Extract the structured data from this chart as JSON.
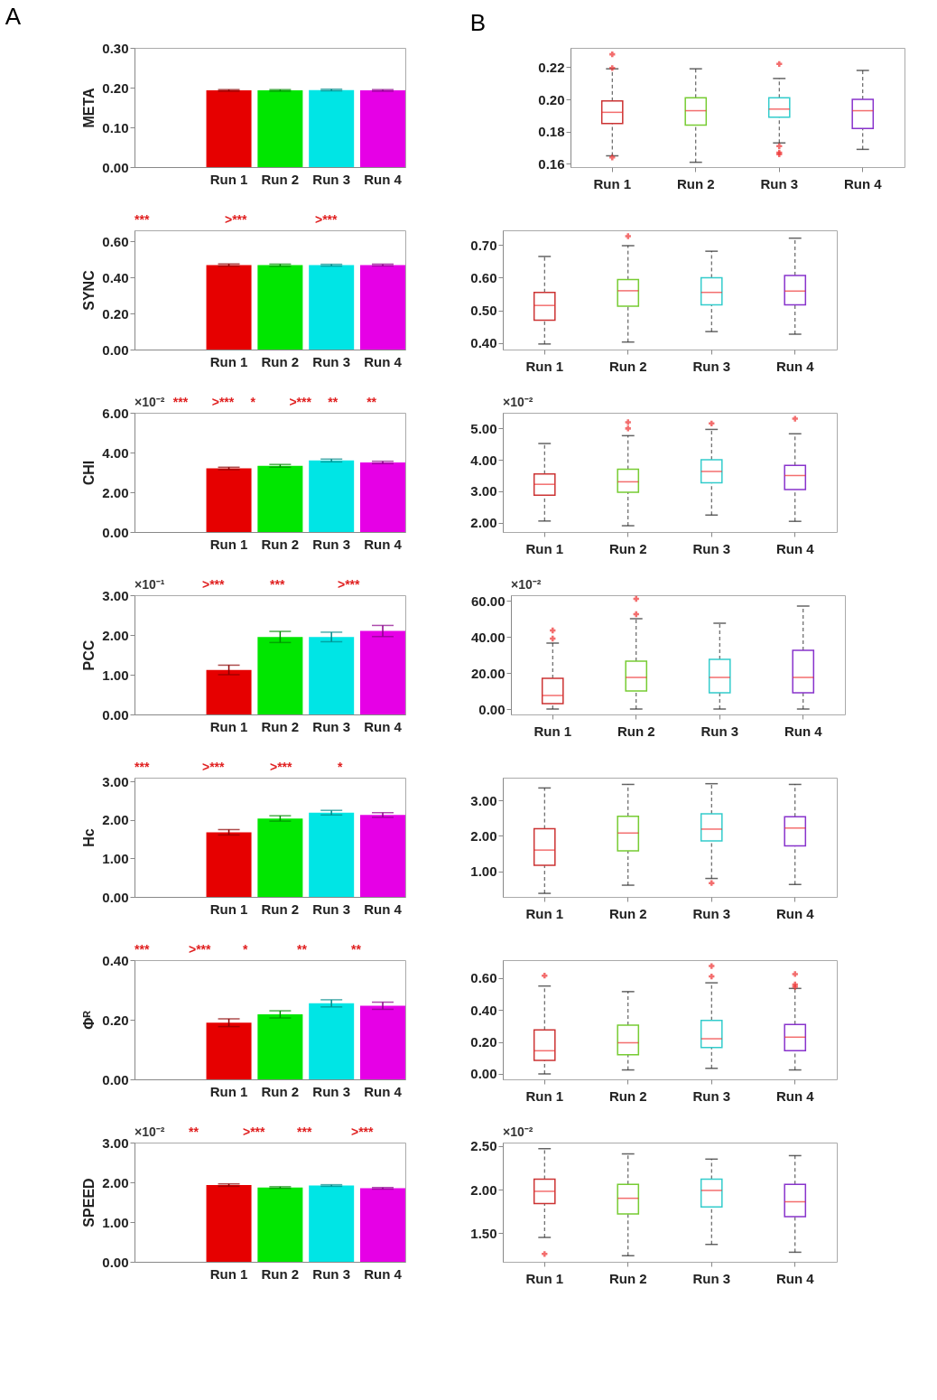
{
  "chart_data": [
    {
      "type": "bar",
      "title": "A",
      "ylabel": "META",
      "categories": [
        "Run 1",
        "Run 2",
        "Run 3",
        "Run 4"
      ],
      "values": [
        0.193,
        0.193,
        0.194,
        0.193
      ],
      "errors": [
        0.002,
        0.002,
        0.002,
        0.002
      ],
      "colors": [
        "#e60000",
        "#00e600",
        "#00e5e5",
        "#e600e6"
      ],
      "ylim": [
        0,
        0.3
      ],
      "yticks": [
        {
          "value": 0,
          "label": "0.00"
        },
        {
          "value": 0.1,
          "label": "0.10"
        },
        {
          "value": 0.2,
          "label": "0.20"
        },
        {
          "value": 0.3,
          "label": "0.30"
        }
      ]
    },
    {
      "type": "box",
      "title": "B",
      "categories": [
        "Run 1",
        "Run 2",
        "Run 3",
        "Run 4"
      ],
      "colors": [
        "#cc3333",
        "#77cc33",
        "#33cccc",
        "#8833cc"
      ],
      "marker": "cross",
      "line_style": "dashed",
      "ylim": [
        0.158,
        0.232
      ],
      "yticks": [
        {
          "value": 0.16,
          "label": "0.16"
        },
        {
          "value": 0.18,
          "label": "0.18"
        },
        {
          "value": 0.2,
          "label": "0.20"
        },
        {
          "value": 0.22,
          "label": "0.22"
        }
      ],
      "boxes": [
        {
          "low": 0.165,
          "q1": 0.185,
          "median": 0.192,
          "q3": 0.199,
          "high": 0.219,
          "outliers": [
            0.228,
            0.2195,
            0.164
          ]
        },
        {
          "low": 0.161,
          "q1": 0.184,
          "median": 0.193,
          "q3": 0.201,
          "high": 0.219
        },
        {
          "low": 0.173,
          "q1": 0.189,
          "median": 0.194,
          "q3": 0.201,
          "high": 0.213,
          "outliers": [
            0.222,
            0.171,
            0.167,
            0.166
          ]
        },
        {
          "low": 0.169,
          "q1": 0.182,
          "median": 0.193,
          "q3": 0.2,
          "high": 0.218
        }
      ]
    },
    {
      "type": "bar",
      "ylabel": "SYNC",
      "categories": [
        "Run 1",
        "Run 2",
        "Run 3",
        "Run 4"
      ],
      "values": [
        0.468,
        0.467,
        0.467,
        0.468
      ],
      "errors": [
        0.006,
        0.006,
        0.005,
        0.005
      ],
      "colors": [
        "#e60000",
        "#00e600",
        "#00e5e5",
        "#e600e6"
      ],
      "ylim": [
        0,
        0.66
      ],
      "yticks": [
        {
          "value": 0,
          "label": "0.00"
        },
        {
          "value": 0.2,
          "label": "0.20"
        },
        {
          "value": 0.4,
          "label": "0.40"
        },
        {
          "value": 0.6,
          "label": "0.60"
        }
      ],
      "annotations": [
        "***",
        ">***",
        ">***"
      ]
    },
    {
      "type": "box",
      "categories": [
        "Run 1",
        "Run 2",
        "Run 3",
        "Run 4"
      ],
      "colors": [
        "#cc3333",
        "#77cc33",
        "#33cccc",
        "#8833cc"
      ],
      "marker": "cross",
      "line_style": "dashed",
      "ylim": [
        0.38,
        0.745
      ],
      "yticks": [
        {
          "value": 0.4,
          "label": "0.40"
        },
        {
          "value": 0.5,
          "label": "0.50"
        },
        {
          "value": 0.6,
          "label": "0.60"
        },
        {
          "value": 0.7,
          "label": "0.70"
        }
      ],
      "boxes": [
        {
          "low": 0.397,
          "q1": 0.47,
          "median": 0.515,
          "q3": 0.555,
          "high": 0.665
        },
        {
          "low": 0.403,
          "q1": 0.513,
          "median": 0.56,
          "q3": 0.594,
          "high": 0.698,
          "outliers": [
            0.727
          ]
        },
        {
          "low": 0.435,
          "q1": 0.517,
          "median": 0.555,
          "q3": 0.6,
          "high": 0.681
        },
        {
          "low": 0.427,
          "q1": 0.517,
          "median": 0.559,
          "q3": 0.607,
          "high": 0.721
        }
      ]
    },
    {
      "type": "bar",
      "ylabel": "CHI",
      "categories": [
        "Run 1",
        "Run 2",
        "Run 3",
        "Run 4"
      ],
      "values": [
        3.2,
        3.33,
        3.6,
        3.5
      ],
      "errors": [
        0.06,
        0.07,
        0.07,
        0.06
      ],
      "colors": [
        "#e60000",
        "#00e600",
        "#00e5e5",
        "#e600e6"
      ],
      "ylim": [
        0,
        6
      ],
      "yticks": [
        {
          "value": 0,
          "label": "0.00"
        },
        {
          "value": 2,
          "label": "2.00"
        },
        {
          "value": 4,
          "label": "4.00"
        },
        {
          "value": 6,
          "label": "6.00"
        }
      ],
      "annotations": [
        "×10⁻²",
        "***",
        ">***",
        "*",
        ">***",
        "**",
        "**"
      ]
    },
    {
      "type": "box",
      "categories": [
        "Run 1",
        "Run 2",
        "Run 3",
        "Run 4"
      ],
      "colors": [
        "#cc3333",
        "#77cc33",
        "#33cccc",
        "#8833cc"
      ],
      "marker": "cross",
      "line_style": "dashed",
      "ylim": [
        1.7,
        5.5
      ],
      "yticks": [
        {
          "value": 2,
          "label": "2.00"
        },
        {
          "value": 3,
          "label": "3.00"
        },
        {
          "value": 4,
          "label": "4.00"
        },
        {
          "value": 5,
          "label": "5.00"
        }
      ],
      "annotations": [
        "×10⁻²"
      ],
      "boxes": [
        {
          "low": 2.05,
          "q1": 2.87,
          "median": 3.22,
          "q3": 3.55,
          "high": 4.52
        },
        {
          "low": 1.9,
          "q1": 2.97,
          "median": 3.3,
          "q3": 3.7,
          "high": 4.77,
          "outliers": [
            5.0,
            5.2
          ]
        },
        {
          "low": 2.24,
          "q1": 3.27,
          "median": 3.63,
          "q3": 4.0,
          "high": 4.97,
          "outliers": [
            5.16
          ]
        },
        {
          "low": 2.04,
          "q1": 3.05,
          "median": 3.5,
          "q3": 3.82,
          "high": 4.83,
          "outliers": [
            5.31
          ]
        }
      ]
    },
    {
      "type": "bar",
      "ylabel": "PCC",
      "categories": [
        "Run 1",
        "Run 2",
        "Run 3",
        "Run 4"
      ],
      "values": [
        1.12,
        1.95,
        1.95,
        2.1
      ],
      "errors": [
        0.12,
        0.14,
        0.12,
        0.14
      ],
      "colors": [
        "#e60000",
        "#00e600",
        "#00e5e5",
        "#e600e6"
      ],
      "ylim": [
        0,
        3
      ],
      "yticks": [
        {
          "value": 0,
          "label": "0.00"
        },
        {
          "value": 1,
          "label": "1.00"
        },
        {
          "value": 2,
          "label": "2.00"
        },
        {
          "value": 3,
          "label": "3.00"
        }
      ],
      "annotations": [
        "×10⁻¹",
        ">***",
        "***",
        ">***"
      ]
    },
    {
      "type": "box",
      "categories": [
        "Run 1",
        "Run 2",
        "Run 3",
        "Run 4"
      ],
      "colors": [
        "#cc3333",
        "#77cc33",
        "#33cccc",
        "#8833cc"
      ],
      "marker": "cross",
      "line_style": "dashed",
      "ylim": [
        -3,
        63
      ],
      "yticks": [
        {
          "value": 0,
          "label": "0.00"
        },
        {
          "value": 20,
          "label": "20.00"
        },
        {
          "value": 40,
          "label": "40.00"
        },
        {
          "value": 60,
          "label": "60.00"
        }
      ],
      "annotations": [
        "×10⁻²"
      ],
      "boxes": [
        {
          "low": 0,
          "q1": 3,
          "median": 7.5,
          "q3": 17,
          "high": 36.5,
          "outliers": [
            39,
            43.5
          ]
        },
        {
          "low": 0,
          "q1": 10,
          "median": 17.5,
          "q3": 26.5,
          "high": 50,
          "outliers": [
            52.5,
            61
          ]
        },
        {
          "low": 0,
          "q1": 9,
          "median": 17.5,
          "q3": 27.5,
          "high": 47.5
        },
        {
          "low": 0,
          "q1": 9,
          "median": 17.5,
          "q3": 32.5,
          "high": 57
        }
      ]
    },
    {
      "type": "bar",
      "ylabel": "Hc",
      "categories": [
        "Run 1",
        "Run 2",
        "Run 3",
        "Run 4"
      ],
      "values": [
        1.68,
        2.04,
        2.19,
        2.13
      ],
      "errors": [
        0.07,
        0.07,
        0.06,
        0.06
      ],
      "colors": [
        "#e60000",
        "#00e600",
        "#00e5e5",
        "#e600e6"
      ],
      "ylim": [
        0,
        3.1
      ],
      "yticks": [
        {
          "value": 0,
          "label": "0.00"
        },
        {
          "value": 1,
          "label": "1.00"
        },
        {
          "value": 2,
          "label": "2.00"
        },
        {
          "value": 3,
          "label": "3.00"
        }
      ],
      "annotations": [
        "***",
        ">***",
        ">***",
        "*"
      ]
    },
    {
      "type": "box",
      "categories": [
        "Run 1",
        "Run 2",
        "Run 3",
        "Run 4"
      ],
      "colors": [
        "#cc3333",
        "#77cc33",
        "#33cccc",
        "#8833cc"
      ],
      "marker": "cross",
      "line_style": "dashed",
      "ylim": [
        0.28,
        3.64
      ],
      "yticks": [
        {
          "value": 1,
          "label": "1.00"
        },
        {
          "value": 2,
          "label": "2.00"
        },
        {
          "value": 3,
          "label": "3.00"
        }
      ],
      "boxes": [
        {
          "low": 0.38,
          "q1": 1.17,
          "median": 1.6,
          "q3": 2.2,
          "high": 3.35
        },
        {
          "low": 0.61,
          "q1": 1.58,
          "median": 2.08,
          "q3": 2.55,
          "high": 3.45
        },
        {
          "low": 0.8,
          "q1": 1.86,
          "median": 2.19,
          "q3": 2.62,
          "high": 3.47,
          "outliers": [
            0.67
          ]
        },
        {
          "low": 0.63,
          "q1": 1.72,
          "median": 2.22,
          "q3": 2.54,
          "high": 3.45
        }
      ]
    },
    {
      "type": "bar",
      "ylabel": "Φᴿ",
      "categories": [
        "Run 1",
        "Run 2",
        "Run 3",
        "Run 4"
      ],
      "values": [
        0.19,
        0.218,
        0.255,
        0.247
      ],
      "errors": [
        0.013,
        0.012,
        0.012,
        0.012
      ],
      "colors": [
        "#e60000",
        "#00e600",
        "#00e5e5",
        "#e600e6"
      ],
      "ylim": [
        0,
        0.4
      ],
      "yticks": [
        {
          "value": 0,
          "label": "0.00"
        },
        {
          "value": 0.2,
          "label": "0.20"
        },
        {
          "value": 0.4,
          "label": "0.40"
        }
      ],
      "annotations": [
        "***",
        ">***",
        "*",
        "**",
        "**"
      ]
    },
    {
      "type": "box",
      "categories": [
        "Run 1",
        "Run 2",
        "Run 3",
        "Run 4"
      ],
      "colors": [
        "#cc3333",
        "#77cc33",
        "#33cccc",
        "#8833cc"
      ],
      "marker": "cross",
      "line_style": "dashed",
      "ylim": [
        -0.034,
        0.712
      ],
      "yticks": [
        {
          "value": 0,
          "label": "0.00"
        },
        {
          "value": 0.2,
          "label": "0.20"
        },
        {
          "value": 0.4,
          "label": "0.40"
        },
        {
          "value": 0.6,
          "label": "0.60"
        }
      ],
      "boxes": [
        {
          "low": 0.0,
          "q1": 0.085,
          "median": 0.145,
          "q3": 0.275,
          "high": 0.55,
          "outliers": [
            0.615
          ]
        },
        {
          "low": 0.025,
          "q1": 0.12,
          "median": 0.195,
          "q3": 0.305,
          "high": 0.515
        },
        {
          "low": 0.035,
          "q1": 0.165,
          "median": 0.22,
          "q3": 0.335,
          "high": 0.57,
          "outliers": [
            0.61,
            0.675
          ]
        },
        {
          "low": 0.025,
          "q1": 0.145,
          "median": 0.23,
          "q3": 0.31,
          "high": 0.535,
          "outliers": [
            0.545,
            0.56,
            0.625
          ]
        }
      ]
    },
    {
      "type": "bar",
      "ylabel": "SPEED",
      "categories": [
        "Run 1",
        "Run 2",
        "Run 3",
        "Run 4"
      ],
      "values": [
        1.93,
        1.87,
        1.92,
        1.85
      ],
      "errors": [
        0.03,
        0.02,
        0.02,
        0.02
      ],
      "colors": [
        "#e60000",
        "#00e600",
        "#00e5e5",
        "#e600e6"
      ],
      "ylim": [
        0,
        3
      ],
      "yticks": [
        {
          "value": 0,
          "label": "0.00"
        },
        {
          "value": 1,
          "label": "1.00"
        },
        {
          "value": 2,
          "label": "2.00"
        },
        {
          "value": 3,
          "label": "3.00"
        }
      ],
      "annotations": [
        "×10⁻²",
        "**",
        ">***",
        "***",
        ">***"
      ]
    },
    {
      "type": "box",
      "categories": [
        "Run 1",
        "Run 2",
        "Run 3",
        "Run 4"
      ],
      "colors": [
        "#cc3333",
        "#77cc33",
        "#33cccc",
        "#8833cc"
      ],
      "marker": "cross",
      "line_style": "dashed",
      "ylim": [
        1.17,
        2.54
      ],
      "yticks": [
        {
          "value": 1.5,
          "label": "1.50"
        },
        {
          "value": 2,
          "label": "2.00"
        },
        {
          "value": 2.5,
          "label": "2.50"
        }
      ],
      "annotations": [
        "×10⁻²"
      ],
      "boxes": [
        {
          "low": 1.45,
          "q1": 1.84,
          "median": 1.98,
          "q3": 2.12,
          "high": 2.47,
          "outliers": [
            1.26
          ]
        },
        {
          "low": 1.24,
          "q1": 1.72,
          "median": 1.9,
          "q3": 2.06,
          "high": 2.41
        },
        {
          "low": 1.37,
          "q1": 1.8,
          "median": 1.99,
          "q3": 2.12,
          "high": 2.35
        },
        {
          "low": 1.28,
          "q1": 1.69,
          "median": 1.86,
          "q3": 2.06,
          "high": 2.39
        }
      ]
    }
  ]
}
